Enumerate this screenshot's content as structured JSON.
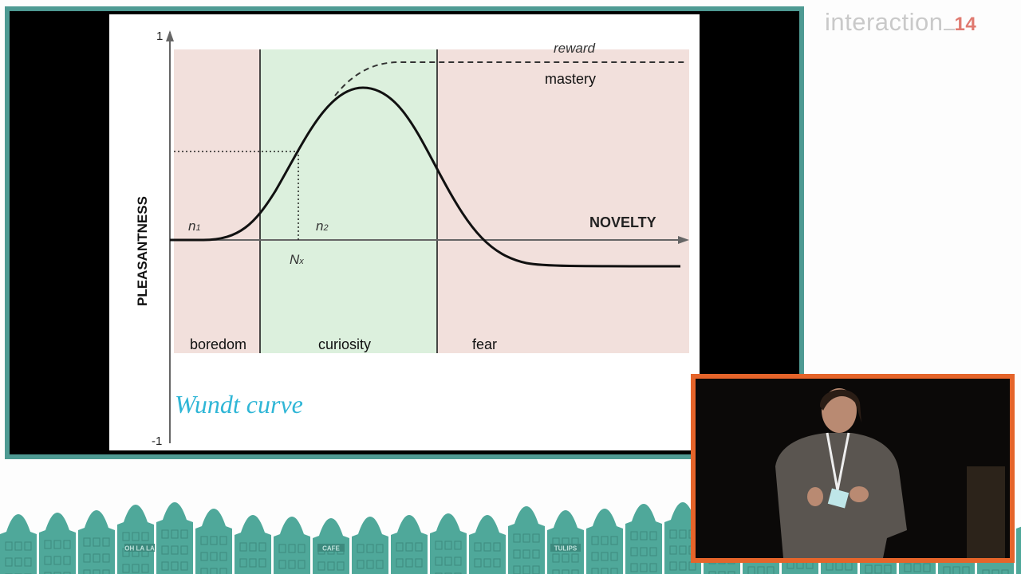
{
  "logo": {
    "text": "interaction",
    "number": "14",
    "color": "#e07a70"
  },
  "slide": {
    "title": "Wundt curve",
    "title_color": "#2fb6d6",
    "y_axis": {
      "label": "PLEASANTNESS",
      "top_tick": "1",
      "bottom_tick": "-1"
    },
    "x_axis": {
      "label": "NOVELTY"
    },
    "markers": {
      "n1": "n",
      "n1_sub": "1",
      "n2": "n",
      "n2_sub": "2",
      "nx": "N",
      "nx_sub": "x"
    },
    "curve_labels": {
      "reward": "reward",
      "mastery": "mastery"
    },
    "zones": [
      {
        "label": "boredom",
        "color": "#f2e0dc"
      },
      {
        "label": "curiosity",
        "color": "#dcf0dd"
      },
      {
        "label": "fear",
        "color": "#f2e0dc"
      }
    ]
  },
  "colors": {
    "frame": "#4e9a93",
    "houses": "#4fa89a",
    "video_border": "#e5642a"
  },
  "house_signs": [
    "OH LA LA",
    "CAFE",
    "TULIPS"
  ]
}
